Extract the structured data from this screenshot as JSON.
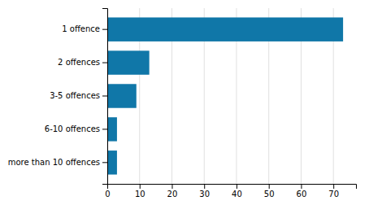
{
  "chart_data": {
    "type": "bar",
    "orientation": "horizontal",
    "categories": [
      "more than 10 offences",
      "6-10 offences",
      "3-5 offences",
      "2 offences",
      "1 offence"
    ],
    "values": [
      3,
      3,
      9,
      13,
      73
    ],
    "color": "#1077a8",
    "xlim": [
      0,
      77
    ],
    "xticks": [
      0,
      10,
      20,
      30,
      40,
      50,
      60,
      70
    ],
    "grid": true
  }
}
